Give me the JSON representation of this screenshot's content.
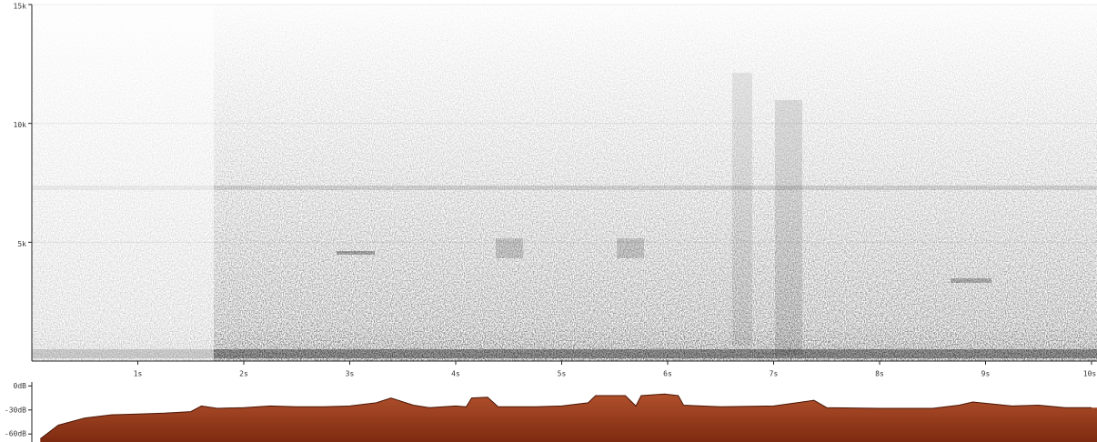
{
  "chart_data": [
    {
      "type": "spectrogram",
      "xlim": [
        0,
        10
      ],
      "xticks": [
        {
          "value": 1,
          "label": "1s"
        },
        {
          "value": 2,
          "label": "2s"
        },
        {
          "value": 3,
          "label": "3s"
        },
        {
          "value": 4,
          "label": "4s"
        },
        {
          "value": 5,
          "label": "5s"
        },
        {
          "value": 6,
          "label": "6s"
        },
        {
          "value": 7,
          "label": "7s"
        },
        {
          "value": 8,
          "label": "8s"
        },
        {
          "value": 9,
          "label": "9s"
        },
        {
          "value": 10,
          "label": "10s"
        }
      ],
      "ylim": [
        0,
        15000
      ],
      "yticks": [
        {
          "value": 5000,
          "label": "5k"
        },
        {
          "value": 10000,
          "label": "10k"
        },
        {
          "value": 15000,
          "label": "15k"
        }
      ]
    },
    {
      "type": "area",
      "color": "#96391a",
      "xlim": [
        0,
        10
      ],
      "ylim": [
        -70,
        5
      ],
      "yticks": [
        {
          "value": 0,
          "label": "0dB"
        },
        {
          "value": -30,
          "label": "-30dB"
        },
        {
          "value": -60,
          "label": "-60dB"
        }
      ],
      "x": [
        0.08,
        0.25,
        0.5,
        0.75,
        1.0,
        1.25,
        1.5,
        1.6,
        1.75,
        2.0,
        2.25,
        2.5,
        2.75,
        3.0,
        3.25,
        3.39,
        3.6,
        3.75,
        4.0,
        4.1,
        4.15,
        4.3,
        4.4,
        4.75,
        5.0,
        5.25,
        5.32,
        5.6,
        5.7,
        5.75,
        5.97,
        6.1,
        6.15,
        6.5,
        7.0,
        7.38,
        7.5,
        8.0,
        8.5,
        8.75,
        8.88,
        9.25,
        9.5,
        9.75,
        10.0
      ],
      "values": [
        -66,
        -49,
        -40,
        -36,
        -35,
        -34,
        -32,
        -25,
        -28,
        -27,
        -25,
        -26,
        -26,
        -25,
        -21,
        -15,
        -24,
        -27,
        -25,
        -26,
        -15,
        -14,
        -26,
        -26,
        -25,
        -21,
        -12,
        -12,
        -25,
        -12,
        -10,
        -12,
        -24,
        -26,
        -25,
        -18,
        -27,
        -28,
        -28,
        -24,
        -20,
        -25,
        -24,
        -27,
        -27
      ]
    }
  ]
}
